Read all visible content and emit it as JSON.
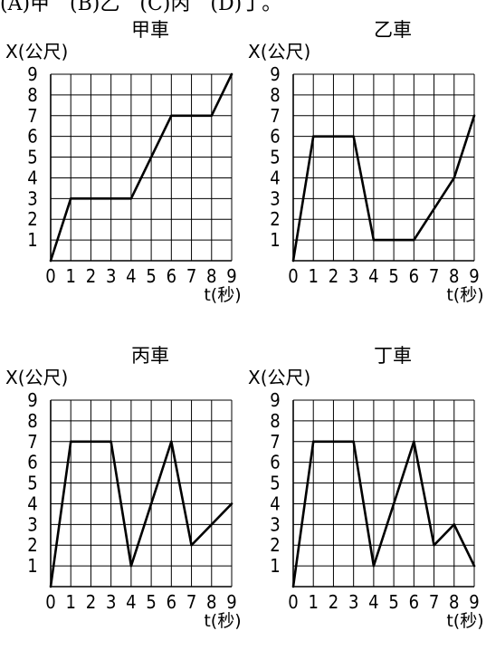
{
  "header": {
    "text": "(A)甲　(B)乙　(C)丙　(D)丁。"
  },
  "chart_data": [
    {
      "type": "line",
      "title": "甲車",
      "ylabel": "X(公尺)",
      "xlabel": "t(秒)",
      "xticks": [
        "0",
        "1",
        "2",
        "3",
        "4",
        "5",
        "6",
        "7",
        "8",
        "9"
      ],
      "yticks": [
        "1",
        "2",
        "3",
        "4",
        "5",
        "6",
        "7",
        "8",
        "9"
      ],
      "xlim": [
        0,
        9
      ],
      "ylim": [
        0,
        9
      ],
      "grid": true,
      "x": [
        0,
        1,
        4,
        6,
        8,
        9
      ],
      "y": [
        0,
        3,
        3,
        7,
        7,
        9
      ]
    },
    {
      "type": "line",
      "title": "乙車",
      "ylabel": "X(公尺)",
      "xlabel": "t(秒)",
      "xticks": [
        "0",
        "1",
        "2",
        "3",
        "4",
        "5",
        "6",
        "7",
        "8",
        "9"
      ],
      "yticks": [
        "1",
        "2",
        "3",
        "4",
        "5",
        "6",
        "7",
        "8",
        "9"
      ],
      "xlim": [
        0,
        9
      ],
      "ylim": [
        0,
        9
      ],
      "grid": true,
      "x": [
        0,
        1,
        3,
        4,
        6,
        8,
        9
      ],
      "y": [
        0,
        6,
        6,
        1,
        1,
        4,
        7
      ]
    },
    {
      "type": "line",
      "title": "丙車",
      "ylabel": "X(公尺)",
      "xlabel": "t(秒)",
      "xticks": [
        "0",
        "1",
        "2",
        "3",
        "4",
        "5",
        "6",
        "7",
        "8",
        "9"
      ],
      "yticks": [
        "1",
        "2",
        "3",
        "4",
        "5",
        "6",
        "7",
        "8",
        "9"
      ],
      "xlim": [
        0,
        9
      ],
      "ylim": [
        0,
        9
      ],
      "grid": true,
      "x": [
        0,
        1,
        3,
        4,
        6,
        7,
        9
      ],
      "y": [
        0,
        7,
        7,
        1,
        7,
        2,
        4
      ]
    },
    {
      "type": "line",
      "title": "丁車",
      "ylabel": "X(公尺)",
      "xlabel": "t(秒)",
      "xticks": [
        "0",
        "1",
        "2",
        "3",
        "4",
        "5",
        "6",
        "7",
        "8",
        "9"
      ],
      "yticks": [
        "1",
        "2",
        "3",
        "4",
        "5",
        "6",
        "7",
        "8",
        "9"
      ],
      "xlim": [
        0,
        9
      ],
      "ylim": [
        0,
        9
      ],
      "grid": true,
      "x": [
        0,
        1,
        3,
        4,
        6,
        7,
        8,
        9
      ],
      "y": [
        0,
        7,
        7,
        1,
        7,
        2,
        3,
        1
      ]
    }
  ]
}
